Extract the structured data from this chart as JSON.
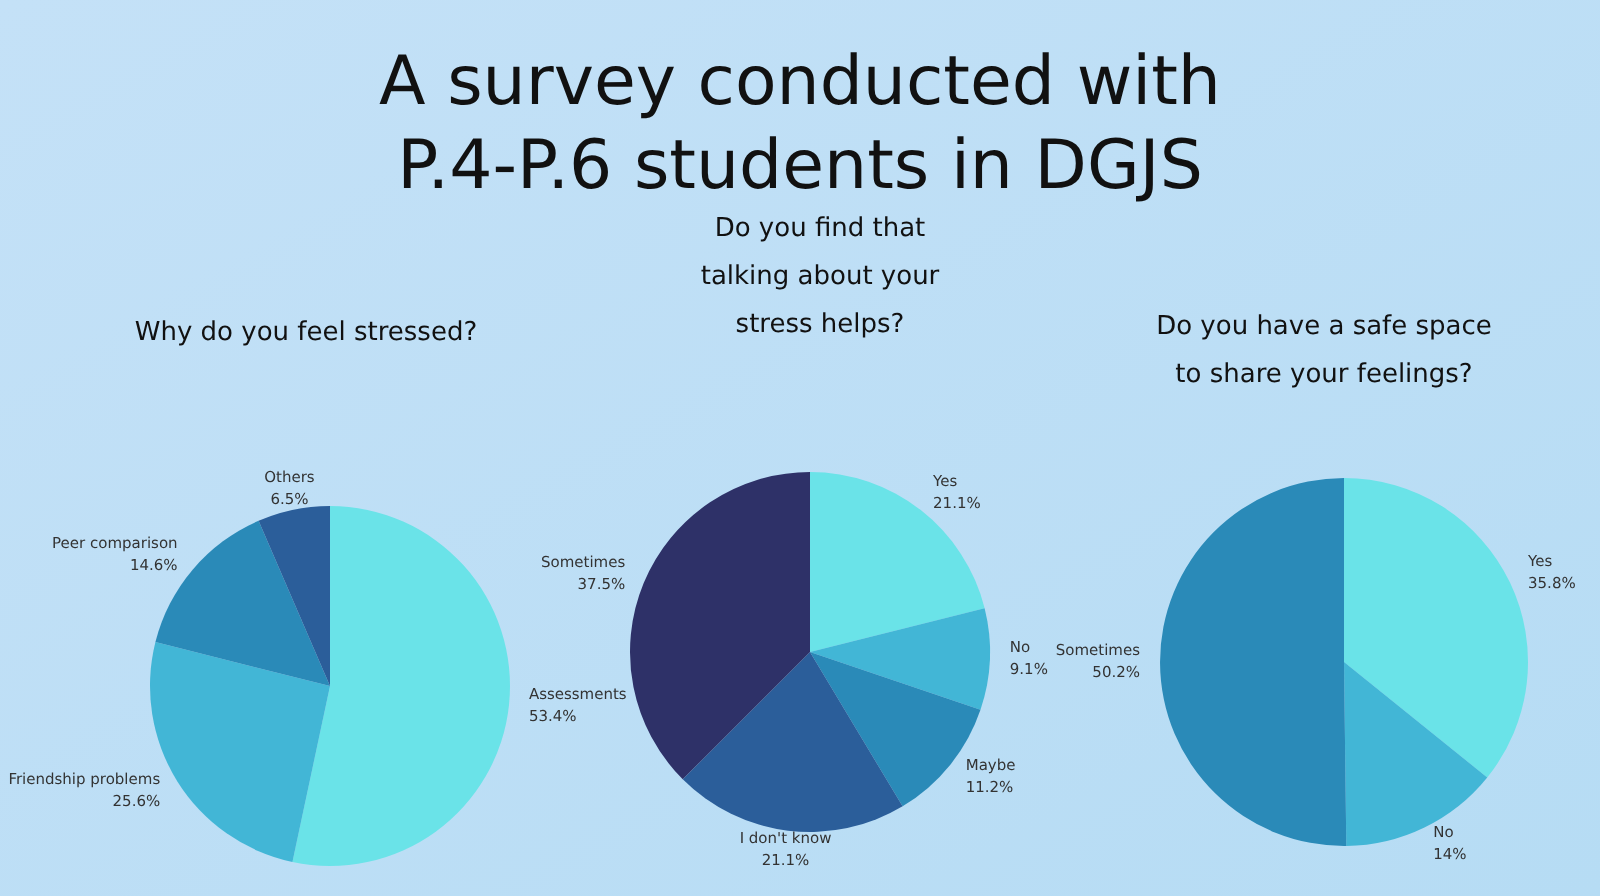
{
  "chart_data": [
    {
      "type": "other",
      "title": "A survey conducted with P.4-P.6 students in DGJS"
    },
    {
      "type": "pie",
      "title": "Why do you feel stressed?",
      "categories": [
        "Assessments",
        "Friendship problems",
        "Peer comparison",
        "Others"
      ],
      "values": [
        53.4,
        25.6,
        14.6,
        6.5
      ],
      "value_labels": [
        "53.4%",
        "25.6%",
        "14.6%",
        "6.5%"
      ],
      "colors": [
        "#6ae3e8",
        "#42b6d6",
        "#2a8ab8",
        "#2b5e9a"
      ]
    },
    {
      "type": "pie",
      "title": "Do you find that talking about your stress helps?",
      "categories": [
        "Yes",
        "No",
        "Maybe",
        "I don't know",
        "Sometimes"
      ],
      "values": [
        21.1,
        9.1,
        11.2,
        21.1,
        37.5
      ],
      "value_labels": [
        "21.1%",
        "9.1%",
        "11.2%",
        "21.1%",
        "37.5%"
      ],
      "colors": [
        "#6ae3e8",
        "#42b6d6",
        "#2a8ab8",
        "#2b5e9a",
        "#2e3168"
      ]
    },
    {
      "type": "pie",
      "title": "Do you have a safe space to share your feelings?",
      "categories": [
        "Yes",
        "No",
        "Sometimes"
      ],
      "values": [
        35.8,
        14,
        50.2
      ],
      "value_labels": [
        "35.8%",
        "14%",
        "50.2%"
      ],
      "colors": [
        "#6ae3e8",
        "#42b6d6",
        "#2a8ab8"
      ]
    }
  ]
}
